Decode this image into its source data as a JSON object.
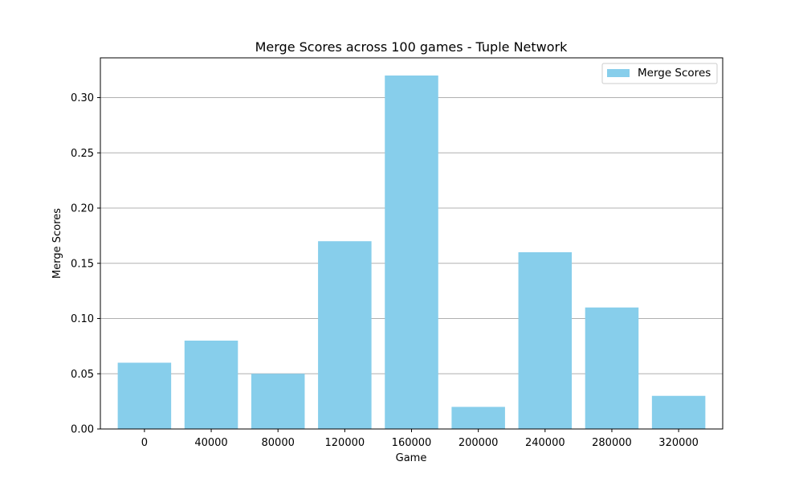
{
  "chart_data": {
    "type": "bar",
    "title": "Merge Scores across 100 games - Tuple Network",
    "xlabel": "Game",
    "ylabel": "Merge Scores",
    "categories": [
      "0",
      "40000",
      "80000",
      "120000",
      "160000",
      "200000",
      "240000",
      "280000",
      "320000"
    ],
    "series": [
      {
        "name": "Merge Scores",
        "values": [
          0.06,
          0.08,
          0.05,
          0.17,
          0.32,
          0.02,
          0.16,
          0.11,
          0.03
        ],
        "color": "#87ceeb"
      }
    ],
    "ylim": [
      0,
      0.336
    ],
    "yticks": [
      "0.00",
      "0.05",
      "0.10",
      "0.15",
      "0.20",
      "0.25",
      "0.30"
    ],
    "ytick_values": [
      0,
      0.05,
      0.1,
      0.15,
      0.2,
      0.25,
      0.3
    ],
    "grid": {
      "y": true,
      "x": false,
      "color": "#b0b0b0"
    },
    "legend": "top-right"
  }
}
